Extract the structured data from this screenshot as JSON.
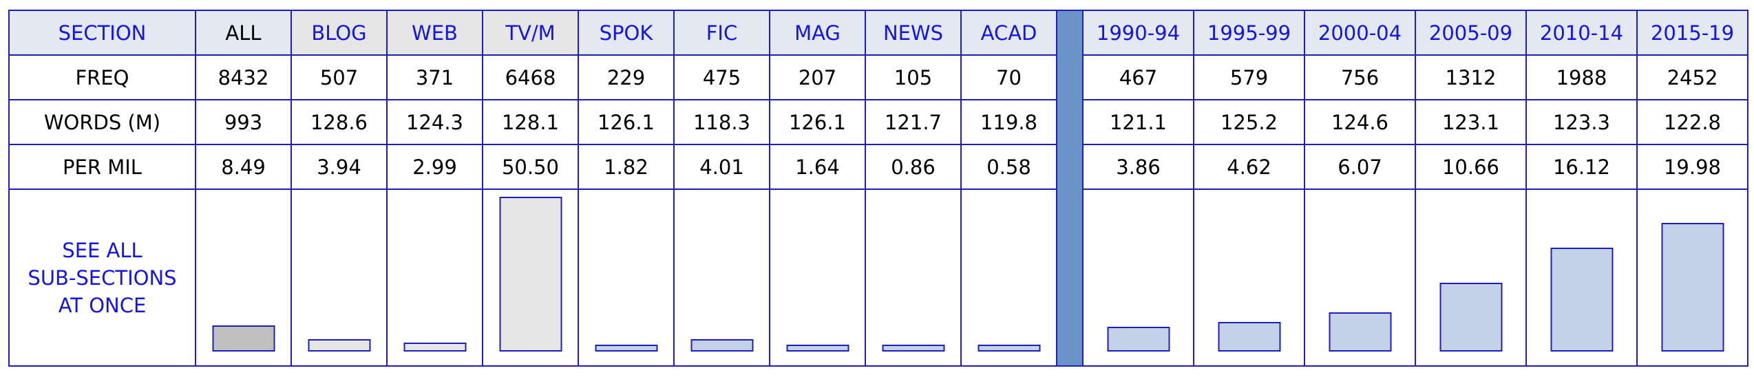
{
  "row_labels": {
    "section": "SECTION",
    "freq": "FREQ",
    "words": "WORDS (M)",
    "per_mil": "PER MIL",
    "see_all": [
      "SEE ALL",
      "SUB-SECTIONS",
      "AT ONCE"
    ]
  },
  "columns": [
    {
      "section": "ALL",
      "freq": "8432",
      "words": "993",
      "per_mil": "8.49",
      "per_mil_value": 8.49
    },
    {
      "section": "BLOG",
      "freq": "507",
      "words": "128.6",
      "per_mil": "3.94",
      "per_mil_value": 3.94
    },
    {
      "section": "WEB",
      "freq": "371",
      "words": "124.3",
      "per_mil": "2.99",
      "per_mil_value": 2.99
    },
    {
      "section": "TV/M",
      "freq": "6468",
      "words": "128.1",
      "per_mil": "50.50",
      "per_mil_value": 50.5
    },
    {
      "section": "SPOK",
      "freq": "229",
      "words": "126.1",
      "per_mil": "1.82",
      "per_mil_value": 1.82
    },
    {
      "section": "FIC",
      "freq": "475",
      "words": "118.3",
      "per_mil": "4.01",
      "per_mil_value": 4.01
    },
    {
      "section": "MAG",
      "freq": "207",
      "words": "126.1",
      "per_mil": "1.64",
      "per_mil_value": 1.64
    },
    {
      "section": "NEWS",
      "freq": "105",
      "words": "121.7",
      "per_mil": "0.86",
      "per_mil_value": 0.86
    },
    {
      "section": "ACAD",
      "freq": "70",
      "words": "119.8",
      "per_mil": "0.58",
      "per_mil_value": 0.58
    },
    {
      "section": "1990-94",
      "freq": "467",
      "words": "121.1",
      "per_mil": "3.86",
      "per_mil_value": 3.86
    },
    {
      "section": "1995-99",
      "freq": "579",
      "words": "125.2",
      "per_mil": "4.62",
      "per_mil_value": 4.62
    },
    {
      "section": "2000-04",
      "freq": "756",
      "words": "124.6",
      "per_mil": "6.07",
      "per_mil_value": 6.07
    },
    {
      "section": "2005-09",
      "freq": "1312",
      "words": "123.1",
      "per_mil": "10.66",
      "per_mil_value": 10.66
    },
    {
      "section": "2010-14",
      "freq": "1988",
      "words": "123.3",
      "per_mil": "16.12",
      "per_mil_value": 16.12
    },
    {
      "section": "2015-19",
      "freq": "2452",
      "words": "122.8",
      "per_mil": "19.98",
      "per_mil_value": 19.98
    }
  ],
  "colors": {
    "border": "#1f1fb8",
    "label_text": "#1515e0",
    "separator": "#6a93c8",
    "bar_all": "#c0c0c0",
    "bar_genre": "#e6e6e6",
    "bar_blue": "#c3d2e8"
  }
}
